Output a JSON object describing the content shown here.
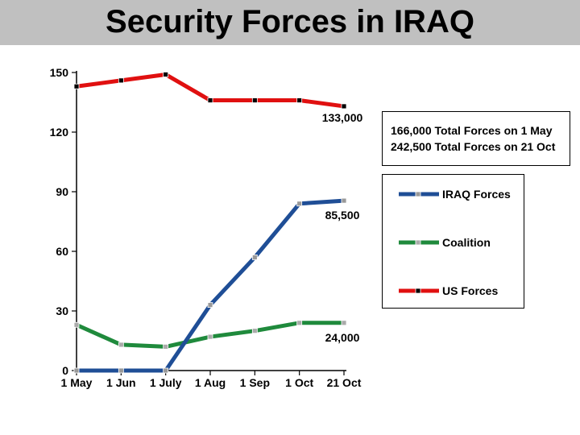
{
  "slide": {
    "title": "Security Forces in IRAQ"
  },
  "info": {
    "line1": "166,000 Total Forces on 1 May",
    "line2": "242,500 Total Forces on 21 Oct"
  },
  "chart_data": {
    "type": "line",
    "categories": [
      "1 May",
      "1 Jun",
      "1 July",
      "1 Aug",
      "1 Sep",
      "1 Oct",
      "21 Oct"
    ],
    "yticks": [
      0,
      30,
      60,
      90,
      120,
      150
    ],
    "ylim": [
      0,
      150
    ],
    "grid": false,
    "legend_position": "right",
    "series": [
      {
        "name": "IRAQ Forces",
        "color": "#1f4e96",
        "marker": "#999999",
        "values": [
          0,
          0,
          0,
          33,
          57,
          84,
          85.5
        ]
      },
      {
        "name": "Coalition",
        "color": "#1f8a3c",
        "marker": "#aaaaaa",
        "values": [
          23,
          13,
          12,
          17,
          20,
          24,
          24
        ]
      },
      {
        "name": "US Forces",
        "color": "#e01010",
        "marker": "#000000",
        "values": [
          143,
          146,
          149,
          136,
          136,
          136,
          133
        ]
      }
    ],
    "annotations": [
      {
        "text": "133,000",
        "series": 2,
        "index": 6
      },
      {
        "text": "85,500",
        "series": 0,
        "index": 6
      },
      {
        "text": "24,000",
        "series": 1,
        "index": 6
      }
    ]
  }
}
